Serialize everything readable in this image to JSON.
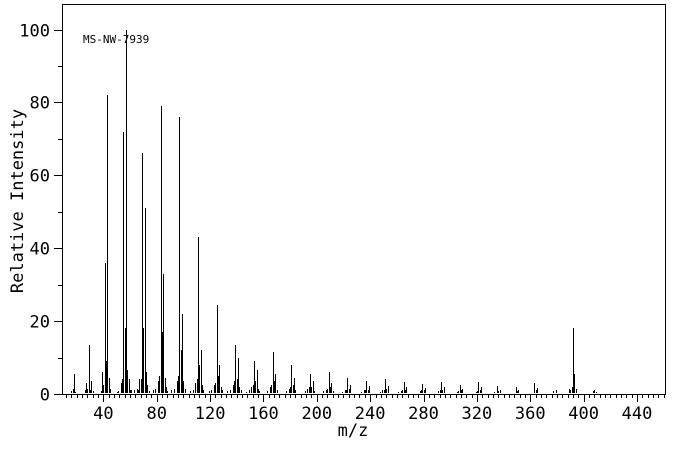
{
  "window": {
    "background": "#ffffff",
    "foreground": "#000000"
  },
  "chart_data": {
    "type": "bar",
    "subtype": "mass-spectrum",
    "title_annotation": "MS-NW-7939",
    "xlabel": "m/z",
    "ylabel": "Relative Intensity",
    "grid": false,
    "line_color": "#000000",
    "xlim": [
      9,
      461
    ],
    "ylim": [
      0,
      107
    ],
    "x_major_ticks": [
      40,
      80,
      120,
      160,
      200,
      240,
      280,
      320,
      360,
      400,
      440
    ],
    "x_minor_tick_step": 4,
    "y_major_ticks": [
      0,
      20,
      40,
      60,
      80,
      100
    ],
    "y_minor_ticks": [
      10,
      30,
      50,
      70,
      90
    ],
    "peaks": [
      [
        16,
        0.8
      ],
      [
        17,
        1.5
      ],
      [
        18,
        5.5
      ],
      [
        19,
        0.5
      ],
      [
        26,
        1
      ],
      [
        27,
        3
      ],
      [
        28,
        1.5
      ],
      [
        29,
        13.5
      ],
      [
        30,
        1
      ],
      [
        31,
        3.5
      ],
      [
        32,
        0.7
      ],
      [
        38,
        0.8
      ],
      [
        39,
        6
      ],
      [
        40,
        2.5
      ],
      [
        41,
        36
      ],
      [
        42,
        9
      ],
      [
        43,
        82
      ],
      [
        44,
        4.5
      ],
      [
        45,
        1.5
      ],
      [
        50,
        0.5
      ],
      [
        51,
        0.7
      ],
      [
        53,
        3
      ],
      [
        54,
        4
      ],
      [
        55,
        72
      ],
      [
        56,
        18
      ],
      [
        57,
        100
      ],
      [
        58,
        6.5
      ],
      [
        59,
        4
      ],
      [
        60,
        1.2
      ],
      [
        61,
        1
      ],
      [
        63,
        1.2
      ],
      [
        65,
        1.5
      ],
      [
        66,
        1
      ],
      [
        67,
        4
      ],
      [
        68,
        4
      ],
      [
        69,
        66
      ],
      [
        70,
        18
      ],
      [
        71,
        51
      ],
      [
        72,
        6
      ],
      [
        73,
        2.5
      ],
      [
        74,
        0.8
      ],
      [
        77,
        1
      ],
      [
        79,
        1.5
      ],
      [
        81,
        3.5
      ],
      [
        82,
        5
      ],
      [
        83,
        79
      ],
      [
        84,
        17
      ],
      [
        85,
        33
      ],
      [
        86,
        4.5
      ],
      [
        87,
        2
      ],
      [
        88,
        0.7
      ],
      [
        91,
        1
      ],
      [
        93,
        1.5
      ],
      [
        95,
        3.5
      ],
      [
        96,
        5
      ],
      [
        97,
        76
      ],
      [
        98,
        12
      ],
      [
        99,
        22
      ],
      [
        100,
        3.5
      ],
      [
        101,
        1.5
      ],
      [
        105,
        0.8
      ],
      [
        107,
        1.2
      ],
      [
        109,
        3
      ],
      [
        110,
        4
      ],
      [
        111,
        43
      ],
      [
        112,
        8
      ],
      [
        113,
        12
      ],
      [
        114,
        2.5
      ],
      [
        115,
        1
      ],
      [
        119,
        0.8
      ],
      [
        121,
        1.2
      ],
      [
        123,
        2.5
      ],
      [
        124,
        3
      ],
      [
        125,
        24.5
      ],
      [
        126,
        5
      ],
      [
        127,
        8
      ],
      [
        128,
        1.8
      ],
      [
        129,
        1
      ],
      [
        133,
        0.7
      ],
      [
        135,
        1.2
      ],
      [
        137,
        2.5
      ],
      [
        138,
        3.5
      ],
      [
        139,
        13.5
      ],
      [
        140,
        4
      ],
      [
        141,
        10
      ],
      [
        142,
        2
      ],
      [
        143,
        1
      ],
      [
        147,
        0.6
      ],
      [
        149,
        1
      ],
      [
        151,
        2
      ],
      [
        152,
        2.5
      ],
      [
        153,
        9
      ],
      [
        154,
        3.5
      ],
      [
        155,
        6.5
      ],
      [
        156,
        1.5
      ],
      [
        157,
        0.8
      ],
      [
        163,
        0.8
      ],
      [
        165,
        2
      ],
      [
        166,
        2.5
      ],
      [
        167,
        11.5
      ],
      [
        168,
        3.5
      ],
      [
        169,
        5.5
      ],
      [
        170,
        1.2
      ],
      [
        177,
        0.8
      ],
      [
        179,
        1.5
      ],
      [
        180,
        2
      ],
      [
        181,
        8
      ],
      [
        182,
        2.5
      ],
      [
        183,
        4.5
      ],
      [
        184,
        1
      ],
      [
        191,
        0.7
      ],
      [
        193,
        1.5
      ],
      [
        194,
        2
      ],
      [
        195,
        5.5
      ],
      [
        196,
        2
      ],
      [
        197,
        3.5
      ],
      [
        198,
        0.8
      ],
      [
        205,
        0.7
      ],
      [
        207,
        1.2
      ],
      [
        208,
        1.5
      ],
      [
        209,
        6
      ],
      [
        210,
        2
      ],
      [
        211,
        3
      ],
      [
        212,
        0.8
      ],
      [
        219,
        0.6
      ],
      [
        221,
        1
      ],
      [
        222,
        1.2
      ],
      [
        223,
        4.5
      ],
      [
        224,
        1.5
      ],
      [
        225,
        2.5
      ],
      [
        233,
        0.6
      ],
      [
        235,
        1
      ],
      [
        236,
        1.2
      ],
      [
        237,
        3.5
      ],
      [
        238,
        1.2
      ],
      [
        239,
        2.2
      ],
      [
        247,
        0.6
      ],
      [
        249,
        1
      ],
      [
        250,
        1.2
      ],
      [
        251,
        4.2
      ],
      [
        252,
        1.5
      ],
      [
        253,
        2.2
      ],
      [
        261,
        0.5
      ],
      [
        263,
        0.8
      ],
      [
        264,
        1
      ],
      [
        265,
        3.2
      ],
      [
        266,
        1.2
      ],
      [
        267,
        1.8
      ],
      [
        277,
        0.8
      ],
      [
        278,
        1
      ],
      [
        279,
        2.8
      ],
      [
        280,
        1
      ],
      [
        281,
        1.6
      ],
      [
        291,
        0.7
      ],
      [
        292,
        1
      ],
      [
        293,
        3.2
      ],
      [
        294,
        1.2
      ],
      [
        295,
        1.8
      ],
      [
        305,
        0.6
      ],
      [
        306,
        0.8
      ],
      [
        307,
        2.4
      ],
      [
        308,
        1
      ],
      [
        309,
        1.4
      ],
      [
        319,
        0.6
      ],
      [
        320,
        0.8
      ],
      [
        321,
        3.4
      ],
      [
        322,
        1.2
      ],
      [
        323,
        1.8
      ],
      [
        333,
        0.5
      ],
      [
        335,
        2.2
      ],
      [
        336,
        0.8
      ],
      [
        337,
        1.2
      ],
      [
        347,
        0.4
      ],
      [
        349,
        1.8
      ],
      [
        350,
        0.7
      ],
      [
        351,
        1
      ],
      [
        361,
        0.4
      ],
      [
        363,
        3
      ],
      [
        364,
        1.2
      ],
      [
        365,
        1.6
      ],
      [
        377,
        0.8
      ],
      [
        379,
        1.2
      ],
      [
        389,
        1.4
      ],
      [
        390,
        1
      ],
      [
        391,
        2
      ],
      [
        392,
        18
      ],
      [
        393,
        5.5
      ],
      [
        394,
        1.5
      ],
      [
        407,
        0.8
      ],
      [
        408,
        1
      ],
      [
        409,
        0.6
      ]
    ]
  }
}
